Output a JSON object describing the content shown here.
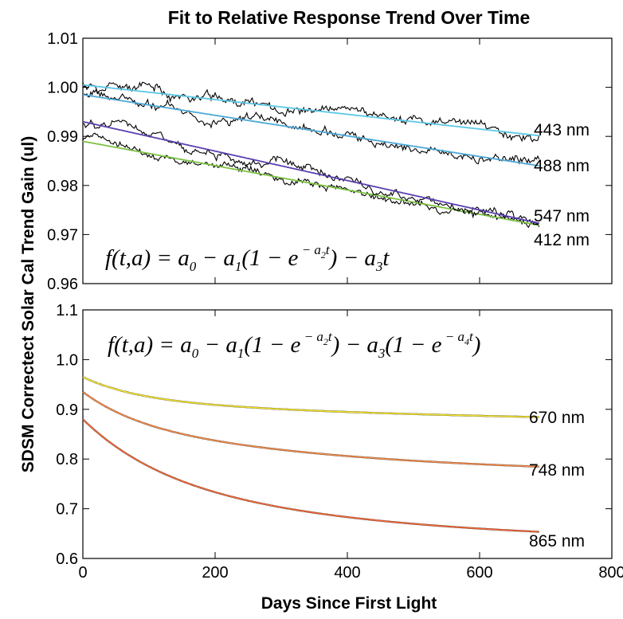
{
  "title": "Fit to Relative Response Trend Over Time",
  "ylabel": "SDSM Correctect Solar Cal Trend Gain (ul)",
  "xlabel": "Days Since First Light",
  "chart_data": [
    {
      "type": "line",
      "panel": "top",
      "title": "Fit to Relative Response Trend Over Time",
      "ylabel": "SDSM Correctect Solar Cal Trend Gain (ul)",
      "xlim": [
        0,
        800
      ],
      "ylim": [
        0.96,
        1.01
      ],
      "xticks": [
        0,
        200,
        400,
        600,
        800
      ],
      "yticks": [
        0.96,
        0.97,
        0.98,
        0.99,
        1.0,
        1.01
      ],
      "ytick_labels": [
        "0.96",
        "0.97",
        "0.98",
        "0.99",
        "1.00",
        "1.01"
      ],
      "grid": false,
      "equation": {
        "lhs": "f(t,a) = a",
        "rhs_a1": " − a",
        "paren": "(1 − e",
        "close_a3": ") − a",
        "tail": "t",
        "s0": "0",
        "s1": "1",
        "s2": "2",
        "s3": "3",
        "exp_t": "t"
      },
      "series": [
        {
          "name": "443 nm",
          "label": "443 nm",
          "fit_color": "#5bc8e8",
          "fit": {
            "a0": 1.0005,
            "a1": 0,
            "a2": 0,
            "a3": 1.5e-05
          },
          "noise": 0.0012,
          "seed": 11
        },
        {
          "name": "488 nm",
          "label": "488 nm",
          "fit_color": "#4aa8d8",
          "fit": {
            "a0": 0.9985,
            "a1": 0,
            "a2": 0,
            "a3": 2.1e-05
          },
          "noise": 0.0011,
          "seed": 23
        },
        {
          "name": "547 nm",
          "label": "547 nm",
          "fit_color": "#7cc242",
          "fit": {
            "a0": 0.989,
            "a1": 0,
            "a2": 0,
            "a3": 2.48e-05
          },
          "noise": 0.0009,
          "seed": 37
        },
        {
          "name": "412 nm",
          "label": "412 nm",
          "fit_color": "#5a3fb0",
          "fit": {
            "a0": 0.993,
            "a1": 0,
            "a2": 0,
            "a3": 3e-05
          },
          "noise": 0.001,
          "seed": 51
        }
      ]
    },
    {
      "type": "line",
      "panel": "bottom",
      "xlabel": "Days Since First Light",
      "xlim": [
        0,
        800
      ],
      "ylim": [
        0.6,
        1.1
      ],
      "xticks": [
        0,
        200,
        400,
        600,
        800
      ],
      "xtick_labels": [
        "0",
        "200",
        "400",
        "600",
        "800"
      ],
      "yticks": [
        0.6,
        0.7,
        0.8,
        0.9,
        1.0,
        1.1
      ],
      "ytick_labels": [
        "0.6",
        "0.7",
        "0.8",
        "0.9",
        "1.0",
        "1.1"
      ],
      "grid": false,
      "equation": {
        "lhs": "f(t,a) = a",
        "rhs_a1": " − a",
        "paren": "(1 − e",
        "close_a3": ") − a",
        "paren2": "(1 − e",
        "end": ")",
        "s0": "0",
        "s1": "1",
        "s2": "2",
        "s3": "3",
        "s4": "4",
        "exp_t": "t"
      },
      "series": [
        {
          "name": "670 nm",
          "label": "670 nm",
          "fit_color": "#f0e030",
          "fit": {
            "a0": 0.965,
            "a1": 0.045,
            "a2": 0.012,
            "a3": 0.05,
            "a4": 0.0018
          }
        },
        {
          "name": "748 nm",
          "label": "748 nm",
          "fit_color": "#f08a4b",
          "fit": {
            "a0": 0.935,
            "a1": 0.06,
            "a2": 0.012,
            "a3": 0.11,
            "a4": 0.0025
          }
        },
        {
          "name": "865 nm",
          "label": "865 nm",
          "fit_color": "#ee6a3a",
          "fit": {
            "a0": 0.88,
            "a1": 0.11,
            "a2": 0.0085,
            "a3": 0.14,
            "a4": 0.0026
          }
        }
      ]
    }
  ]
}
